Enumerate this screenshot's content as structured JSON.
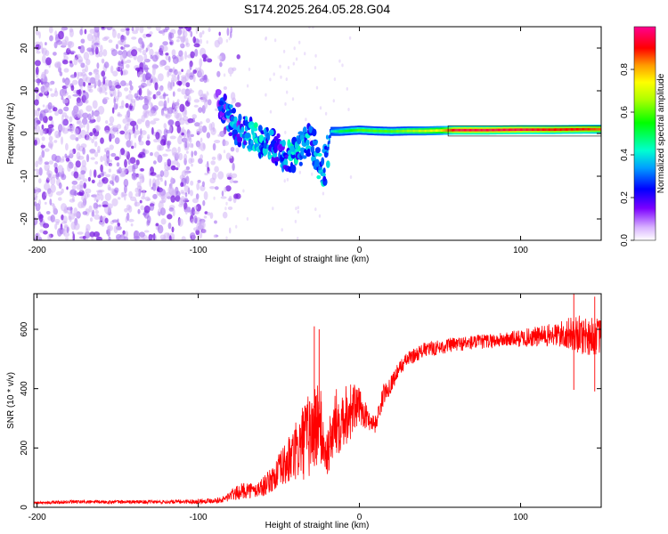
{
  "title": "S174.2025.264.05.28.G04",
  "chart_data": [
    {
      "type": "heatmap",
      "panel": "spectrogram",
      "xlabel": "Height of straight line (km)",
      "ylabel": "Frequency (Hz)",
      "xlim": [
        -202,
        150
      ],
      "ylim": [
        -25,
        25
      ],
      "xticks": [
        -200,
        -100,
        0,
        100
      ],
      "xtick_labels": [
        "-200",
        "-100",
        "0",
        "100"
      ],
      "yticks": [
        -20,
        -10,
        0,
        10,
        20
      ],
      "ytick_labels": [
        "-20",
        "-10",
        "0",
        "10",
        "20"
      ],
      "colorbar": {
        "label": "Normalized spectral amplitude",
        "range": [
          0,
          1
        ],
        "ticks": [
          0.0,
          0.2,
          0.4,
          0.6,
          0.8
        ],
        "tick_labels": [
          "0.0",
          "0.2",
          "0.4",
          "0.6",
          "0.8"
        ],
        "colormap": "rainbow (white-purple-blue-cyan-green-yellow-red-magenta)"
      },
      "ridge": {
        "description": "Dominant spectral line frequency vs height",
        "x": [
          -88,
          -84,
          -80,
          -75,
          -70,
          -65,
          -60,
          -55,
          -50,
          -45,
          -40,
          -35,
          -30,
          -25,
          -22,
          -18,
          -12,
          -5,
          0,
          10,
          20,
          30,
          40,
          50,
          60,
          80,
          100,
          120,
          140,
          150
        ],
        "y": [
          8,
          6,
          3,
          1,
          0,
          -1,
          -2,
          -3,
          -4,
          -6,
          -5,
          -3,
          -1,
          -7,
          -9,
          0.5,
          0.5,
          0.7,
          0.8,
          0.6,
          0.5,
          0.6,
          0.6,
          0.7,
          0.8,
          0.8,
          0.9,
          0.9,
          1.0,
          1.0
        ],
        "amplitude": [
          0.15,
          0.2,
          0.3,
          0.25,
          0.3,
          0.35,
          0.3,
          0.3,
          0.25,
          0.3,
          0.35,
          0.3,
          0.3,
          0.35,
          0.3,
          0.4,
          0.5,
          0.55,
          0.6,
          0.6,
          0.6,
          0.65,
          0.7,
          0.75,
          0.95,
          0.95,
          0.95,
          0.9,
          0.9,
          0.85
        ]
      },
      "noise_region": {
        "description": "Scattered low-amplitude noise",
        "x_range": [
          -202,
          -80
        ],
        "amplitude_range": [
          0.0,
          0.1
        ]
      }
    },
    {
      "type": "line",
      "panel": "snr",
      "xlabel": "Height of straight line (km)",
      "ylabel": "SNR (10 * v/v)",
      "xlim": [
        -202,
        150
      ],
      "ylim": [
        0,
        720
      ],
      "xticks": [
        -200,
        -100,
        0,
        100
      ],
      "xtick_labels": [
        "-200",
        "-100",
        "0",
        "100"
      ],
      "yticks": [
        0,
        200,
        400,
        600
      ],
      "ytick_labels": [
        "0",
        "200",
        "400",
        "600"
      ],
      "color": "#ff0000",
      "series": [
        {
          "name": "SNR",
          "x": [
            -202,
            -180,
            -150,
            -120,
            -100,
            -85,
            -80,
            -75,
            -70,
            -65,
            -60,
            -55,
            -50,
            -45,
            -40,
            -35,
            -30,
            -28,
            -25,
            -22,
            -20,
            -15,
            -10,
            -5,
            0,
            5,
            10,
            15,
            20,
            25,
            30,
            40,
            50,
            60,
            70,
            80,
            90,
            100,
            110,
            120,
            130,
            140,
            150
          ],
          "mean": [
            15,
            18,
            18,
            18,
            20,
            25,
            40,
            50,
            60,
            55,
            70,
            90,
            120,
            150,
            180,
            220,
            250,
            260,
            300,
            200,
            180,
            280,
            310,
            330,
            340,
            300,
            280,
            380,
            420,
            470,
            500,
            530,
            540,
            550,
            555,
            560,
            565,
            570,
            575,
            580,
            585,
            580,
            575
          ],
          "spread": [
            5,
            6,
            6,
            6,
            8,
            10,
            20,
            25,
            30,
            25,
            35,
            40,
            60,
            80,
            100,
            130,
            150,
            160,
            150,
            90,
            80,
            120,
            110,
            100,
            60,
            40,
            30,
            35,
            30,
            25,
            25,
            25,
            25,
            25,
            25,
            25,
            25,
            30,
            35,
            40,
            55,
            70,
            60
          ]
        }
      ],
      "peaks": [
        {
          "x": -28,
          "y": 610
        },
        {
          "x": -25,
          "y": 600
        },
        {
          "x": 133,
          "y": 720
        },
        {
          "x": 146,
          "y": 710
        }
      ]
    }
  ]
}
